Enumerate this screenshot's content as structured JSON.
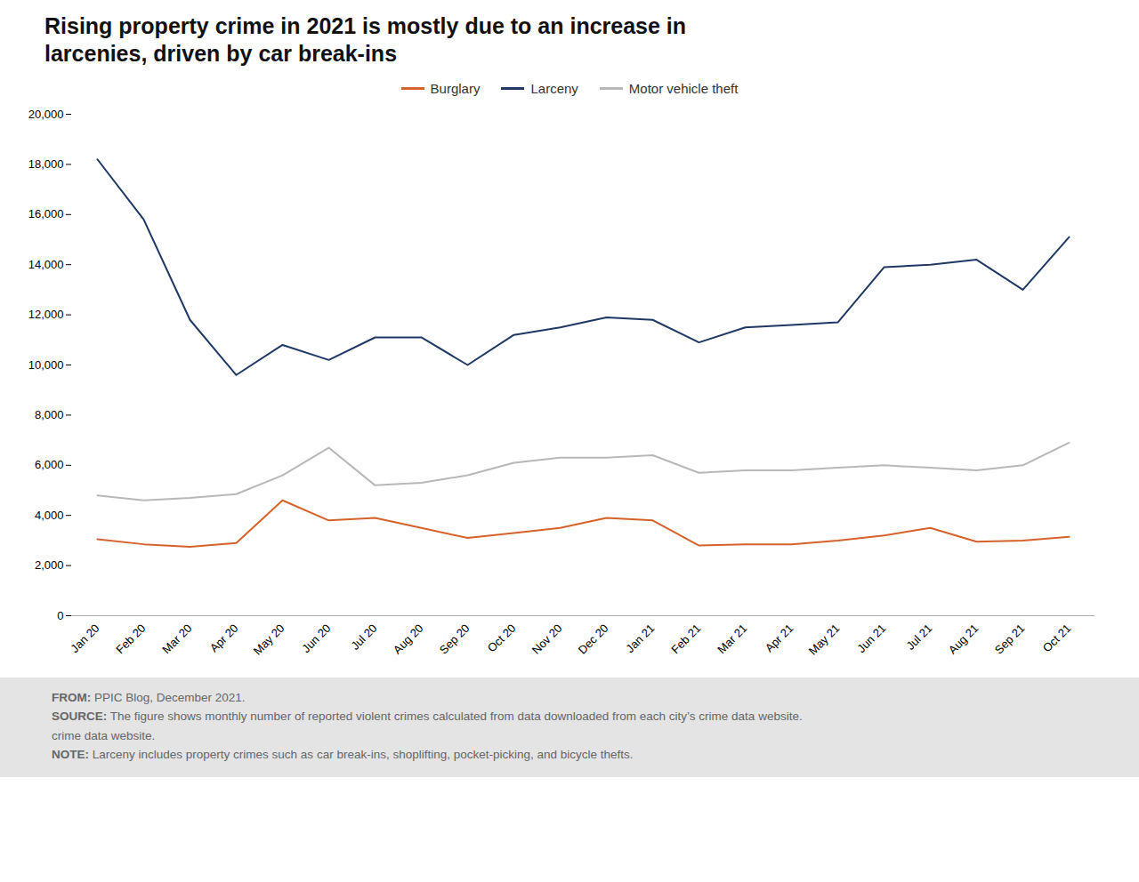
{
  "chart_data": {
    "type": "line",
    "title": "Rising property crime in 2021 is mostly due to an increase in\nlarcenies, driven by car break-ins",
    "categories": [
      "Jan 20",
      "Feb 20",
      "Mar 20",
      "Apr 20",
      "May 20",
      "Jun 20",
      "Jul 20",
      "Aug 20",
      "Sep 20",
      "Oct 20",
      "Nov 20",
      "Dec 20",
      "Jan 21",
      "Feb 21",
      "Mar 21",
      "Apr 21",
      "May 21",
      "Jun 21",
      "Jul 21",
      "Aug 21",
      "Sep 21",
      "Oct 21"
    ],
    "series": [
      {
        "name": "Burglary",
        "color": "#d4622a",
        "values": [
          3050,
          2850,
          2750,
          2900,
          4600,
          3800,
          3900,
          3500,
          3100,
          3300,
          3500,
          3900,
          3800,
          2800,
          2850,
          2850,
          3000,
          3200,
          3500,
          2950,
          3000,
          3150
        ]
      },
      {
        "name": "Larceny",
        "color": "#1f3864",
        "values": [
          18200,
          15800,
          11800,
          9600,
          10800,
          10200,
          11100,
          11100,
          10000,
          11200,
          11500,
          11900,
          11800,
          10900,
          11500,
          11600,
          11700,
          13900,
          14000,
          14200,
          13000,
          15100
        ]
      },
      {
        "name": "Motor vehicle theft",
        "color": "#b8b8b8",
        "values": [
          4800,
          4600,
          4700,
          4850,
          5600,
          6700,
          5200,
          5300,
          5600,
          6100,
          6300,
          6300,
          6400,
          5700,
          5800,
          5800,
          5900,
          6000,
          5900,
          5800,
          6000,
          6900
        ]
      }
    ],
    "ylim": [
      0,
      20000
    ],
    "yticks": [
      0,
      {
        "value": 2000,
        "label": "2,000"
      },
      {
        "value": 4000,
        "label": "4,000"
      },
      {
        "value": 6000,
        "label": "6,000"
      },
      {
        "value": 8000,
        "label": "8,000"
      },
      {
        "value": 10000,
        "label": "10,000"
      },
      {
        "value": 12000,
        "label": "12,000"
      },
      {
        "value": 14000,
        "label": "14,000"
      },
      {
        "value": 16000,
        "label": "16,000"
      },
      {
        "value": 18000,
        "label": "18,000"
      },
      {
        "value": 20000,
        "label": "20,000"
      }
    ],
    "grid": false,
    "legend": "top",
    "annotations": [
      {
        "label": "FROM:",
        "text": "PPIC Blog, December 2021."
      },
      {
        "label": "SOURCE:",
        "text": "The figure shows monthly number of reported violent crimes calculated from data downloaded from each city’s crime data website."
      },
      {
        "text": "crime data website."
      },
      {
        "label": "NOTE:",
        "text": "Larceny includes property crimes such as car break-ins, shoplifting, pocket-picking, and bicycle thefts."
      }
    ]
  }
}
